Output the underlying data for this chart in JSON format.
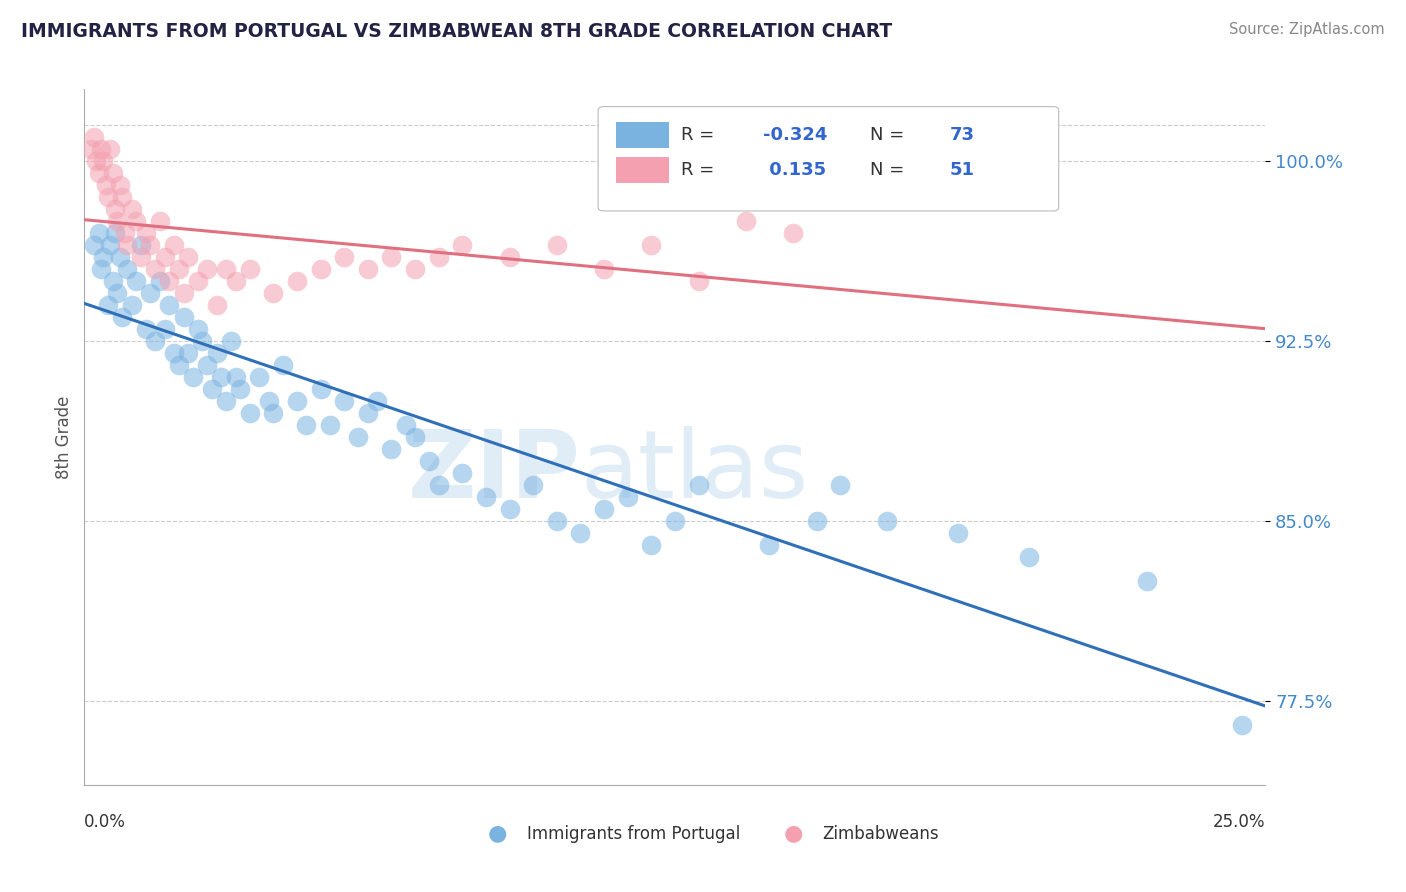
{
  "title": "IMMIGRANTS FROM PORTUGAL VS ZIMBABWEAN 8TH GRADE CORRELATION CHART",
  "source": "Source: ZipAtlas.com",
  "ylabel": "8th Grade",
  "y_ticks": [
    77.5,
    85.0,
    92.5,
    100.0
  ],
  "y_tick_labels": [
    "77.5%",
    "85.0%",
    "92.5%",
    "100.0%"
  ],
  "x_min": 0.0,
  "x_max": 25.0,
  "y_min": 74.0,
  "y_max": 103.0,
  "blue_R": -0.324,
  "blue_N": 73,
  "pink_R": 0.135,
  "pink_N": 51,
  "blue_color": "#7ab3e0",
  "pink_color": "#f4a0b0",
  "blue_line_color": "#3070b8",
  "pink_line_color": "#e07080",
  "legend_label_blue": "Immigrants from Portugal",
  "legend_label_pink": "Zimbabweans",
  "watermark_zip": "ZIP",
  "watermark_atlas": "atlas",
  "blue_points_x": [
    0.2,
    0.3,
    0.35,
    0.4,
    0.5,
    0.55,
    0.6,
    0.65,
    0.7,
    0.75,
    0.8,
    0.9,
    1.0,
    1.1,
    1.2,
    1.3,
    1.4,
    1.5,
    1.6,
    1.7,
    1.8,
    1.9,
    2.0,
    2.1,
    2.2,
    2.3,
    2.4,
    2.5,
    2.6,
    2.7,
    2.8,
    2.9,
    3.0,
    3.1,
    3.2,
    3.3,
    3.5,
    3.7,
    3.9,
    4.0,
    4.2,
    4.5,
    4.7,
    5.0,
    5.2,
    5.5,
    5.8,
    6.0,
    6.2,
    6.5,
    6.8,
    7.0,
    7.3,
    7.5,
    8.0,
    8.5,
    9.0,
    9.5,
    10.0,
    10.5,
    11.0,
    11.5,
    12.0,
    12.5,
    13.0,
    14.5,
    15.5,
    16.0,
    17.0,
    18.5,
    20.0,
    22.5,
    24.5
  ],
  "blue_points_y": [
    96.5,
    97.0,
    95.5,
    96.0,
    94.0,
    96.5,
    95.0,
    97.0,
    94.5,
    96.0,
    93.5,
    95.5,
    94.0,
    95.0,
    96.5,
    93.0,
    94.5,
    92.5,
    95.0,
    93.0,
    94.0,
    92.0,
    91.5,
    93.5,
    92.0,
    91.0,
    93.0,
    92.5,
    91.5,
    90.5,
    92.0,
    91.0,
    90.0,
    92.5,
    91.0,
    90.5,
    89.5,
    91.0,
    90.0,
    89.5,
    91.5,
    90.0,
    89.0,
    90.5,
    89.0,
    90.0,
    88.5,
    89.5,
    90.0,
    88.0,
    89.0,
    88.5,
    87.5,
    86.5,
    87.0,
    86.0,
    85.5,
    86.5,
    85.0,
    84.5,
    85.5,
    86.0,
    84.0,
    85.0,
    86.5,
    84.0,
    85.0,
    86.5,
    85.0,
    84.5,
    83.5,
    82.5,
    76.5
  ],
  "pink_points_x": [
    0.15,
    0.2,
    0.25,
    0.3,
    0.35,
    0.4,
    0.45,
    0.5,
    0.55,
    0.6,
    0.65,
    0.7,
    0.75,
    0.8,
    0.85,
    0.9,
    1.0,
    1.1,
    1.2,
    1.3,
    1.4,
    1.5,
    1.6,
    1.7,
    1.8,
    1.9,
    2.0,
    2.1,
    2.2,
    2.4,
    2.6,
    2.8,
    3.0,
    3.2,
    3.5,
    4.0,
    4.5,
    5.0,
    5.5,
    6.0,
    6.5,
    7.0,
    7.5,
    8.0,
    9.0,
    10.0,
    11.0,
    12.0,
    13.0,
    14.0,
    15.0
  ],
  "pink_points_y": [
    100.5,
    101.0,
    100.0,
    99.5,
    100.5,
    100.0,
    99.0,
    98.5,
    100.5,
    99.5,
    98.0,
    97.5,
    99.0,
    98.5,
    97.0,
    96.5,
    98.0,
    97.5,
    96.0,
    97.0,
    96.5,
    95.5,
    97.5,
    96.0,
    95.0,
    96.5,
    95.5,
    94.5,
    96.0,
    95.0,
    95.5,
    94.0,
    95.5,
    95.0,
    95.5,
    94.5,
    95.0,
    95.5,
    96.0,
    95.5,
    96.0,
    95.5,
    96.0,
    96.5,
    96.0,
    96.5,
    95.5,
    96.5,
    95.0,
    97.5,
    97.0
  ]
}
